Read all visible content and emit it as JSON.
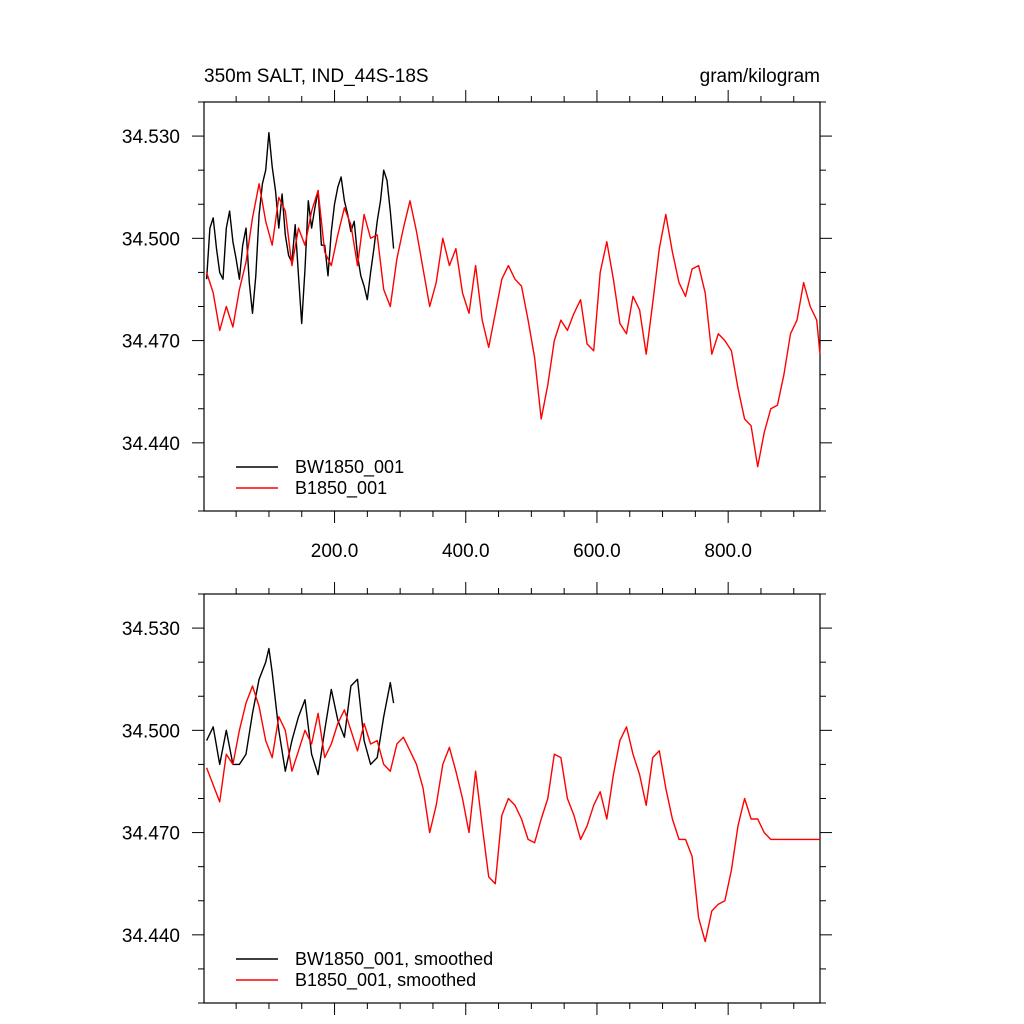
{
  "chart_data": [
    {
      "type": "line",
      "title": "350m SALT, IND_44S-18S",
      "units": "gram/kilogram",
      "xlim": [
        1,
        940
      ],
      "ylim": [
        34.42,
        34.54
      ],
      "xticks": [
        200,
        400,
        600,
        800
      ],
      "xtick_labels": [
        "200.0",
        "400.0",
        "600.0",
        "800.0"
      ],
      "yticks": [
        34.44,
        34.47,
        34.5,
        34.53
      ],
      "ytick_labels": [
        "34.440",
        "34.470",
        "34.500",
        "34.530"
      ],
      "legend_position": "bottom-left",
      "series": [
        {
          "name": "BW1850_001",
          "color": "#000000",
          "x": [
            5,
            10,
            15,
            20,
            25,
            30,
            35,
            40,
            45,
            50,
            55,
            60,
            65,
            70,
            75,
            80,
            85,
            90,
            95,
            100,
            105,
            110,
            115,
            120,
            125,
            130,
            135,
            140,
            145,
            150,
            155,
            160,
            165,
            170,
            175,
            180,
            185,
            190,
            195,
            200,
            205,
            210,
            215,
            220,
            225,
            230,
            235,
            240,
            245,
            250,
            255,
            260,
            265,
            270,
            275,
            280,
            285,
            290
          ],
          "values": [
            34.488,
            34.503,
            34.506,
            34.497,
            34.49,
            34.488,
            34.503,
            34.508,
            34.499,
            34.494,
            34.488,
            34.498,
            34.503,
            34.487,
            34.478,
            34.489,
            34.507,
            34.516,
            34.52,
            34.531,
            34.521,
            34.514,
            34.503,
            34.513,
            34.501,
            34.495,
            34.493,
            34.504,
            34.489,
            34.475,
            34.491,
            34.511,
            34.503,
            34.509,
            34.514,
            34.498,
            34.498,
            34.489,
            34.502,
            34.51,
            34.515,
            34.518,
            34.511,
            34.507,
            34.502,
            34.505,
            34.495,
            34.489,
            34.486,
            34.482,
            34.49,
            34.497,
            34.505,
            34.511,
            34.52,
            34.517,
            34.508,
            34.497
          ]
        },
        {
          "name": "B1850_001",
          "color": "#ff0000",
          "x": [
            5,
            15,
            25,
            35,
            45,
            55,
            65,
            75,
            85,
            95,
            105,
            115,
            125,
            135,
            145,
            155,
            165,
            175,
            185,
            195,
            205,
            215,
            225,
            235,
            245,
            255,
            265,
            275,
            285,
            295,
            305,
            315,
            325,
            335,
            345,
            355,
            365,
            375,
            385,
            395,
            405,
            415,
            425,
            435,
            445,
            455,
            465,
            475,
            485,
            495,
            505,
            515,
            525,
            535,
            545,
            555,
            565,
            575,
            585,
            595,
            605,
            615,
            625,
            635,
            645,
            655,
            665,
            675,
            685,
            695,
            705,
            715,
            725,
            735,
            745,
            755,
            765,
            775,
            785,
            795,
            805,
            815,
            825,
            835,
            845,
            855,
            865,
            875,
            885,
            895,
            905,
            915,
            925,
            935,
            940
          ],
          "values": [
            34.49,
            34.484,
            34.473,
            34.48,
            34.474,
            34.485,
            34.493,
            34.506,
            34.516,
            34.505,
            34.498,
            34.512,
            34.508,
            34.492,
            34.503,
            34.498,
            34.508,
            34.514,
            34.496,
            34.492,
            34.501,
            34.509,
            34.504,
            34.492,
            34.507,
            34.5,
            34.501,
            34.485,
            34.48,
            34.494,
            34.503,
            34.511,
            34.502,
            34.491,
            34.48,
            34.487,
            34.5,
            34.492,
            34.497,
            34.484,
            34.478,
            34.492,
            34.476,
            34.468,
            34.478,
            34.488,
            34.492,
            34.488,
            34.486,
            34.476,
            34.465,
            34.447,
            34.457,
            34.47,
            34.476,
            34.473,
            34.478,
            34.482,
            34.469,
            34.467,
            34.49,
            34.499,
            34.488,
            34.475,
            34.472,
            34.483,
            34.479,
            34.466,
            34.481,
            34.497,
            34.507,
            34.496,
            34.487,
            34.483,
            34.491,
            34.492,
            34.484,
            34.466,
            34.472,
            34.47,
            34.467,
            34.456,
            34.447,
            34.445,
            34.433,
            34.443,
            34.45,
            34.451,
            34.46,
            34.472,
            34.476,
            34.487,
            34.48,
            34.476,
            34.466
          ]
        }
      ]
    },
    {
      "type": "line",
      "xlim": [
        1,
        940
      ],
      "ylim": [
        34.42,
        34.54
      ],
      "xticks": [
        200,
        400,
        600,
        800
      ],
      "xtick_labels": [],
      "yticks": [
        34.44,
        34.47,
        34.5,
        34.53
      ],
      "ytick_labels": [
        "34.440",
        "34.470",
        "34.500",
        "34.530"
      ],
      "legend_position": "bottom-left",
      "series": [
        {
          "name": "BW1850_001, smoothed",
          "color": "#000000",
          "x": [
            5,
            15,
            25,
            35,
            45,
            55,
            65,
            75,
            85,
            95,
            100,
            105,
            115,
            125,
            135,
            145,
            155,
            165,
            175,
            185,
            195,
            205,
            215,
            225,
            235,
            245,
            255,
            265,
            275,
            285,
            290
          ],
          "values": [
            34.497,
            34.501,
            34.49,
            34.5,
            34.49,
            34.49,
            34.493,
            34.505,
            34.515,
            34.52,
            34.524,
            34.517,
            34.5,
            34.488,
            34.497,
            34.504,
            34.509,
            34.493,
            34.487,
            34.5,
            34.512,
            34.503,
            34.498,
            34.513,
            34.515,
            34.497,
            34.49,
            34.492,
            34.504,
            34.514,
            34.508
          ]
        },
        {
          "name": "B1850_001, smoothed",
          "color": "#ff0000",
          "x": [
            5,
            15,
            25,
            35,
            45,
            55,
            65,
            75,
            85,
            95,
            105,
            115,
            125,
            135,
            145,
            155,
            165,
            175,
            185,
            195,
            205,
            215,
            225,
            235,
            245,
            255,
            265,
            275,
            285,
            295,
            305,
            315,
            325,
            335,
            345,
            355,
            365,
            375,
            385,
            395,
            405,
            415,
            425,
            435,
            445,
            455,
            465,
            475,
            485,
            495,
            505,
            515,
            525,
            535,
            545,
            555,
            565,
            575,
            585,
            595,
            605,
            615,
            625,
            635,
            645,
            655,
            665,
            675,
            685,
            695,
            705,
            715,
            725,
            735,
            745,
            755,
            765,
            775,
            785,
            795,
            805,
            815,
            825,
            835,
            845,
            855,
            865,
            875,
            885,
            895,
            905,
            915,
            925,
            935,
            940
          ],
          "values": [
            34.489,
            34.484,
            34.479,
            34.493,
            34.49,
            34.5,
            34.508,
            34.513,
            34.507,
            34.497,
            34.492,
            34.504,
            34.5,
            34.488,
            34.494,
            34.5,
            34.496,
            34.505,
            34.492,
            34.496,
            34.502,
            34.506,
            34.5,
            34.494,
            34.502,
            34.496,
            34.497,
            34.49,
            34.488,
            34.496,
            34.498,
            34.494,
            34.49,
            34.483,
            34.47,
            34.478,
            34.49,
            34.495,
            34.488,
            34.48,
            34.47,
            34.488,
            34.472,
            34.457,
            34.455,
            34.475,
            34.48,
            34.478,
            34.474,
            34.468,
            34.467,
            34.474,
            34.48,
            34.493,
            34.492,
            34.48,
            34.475,
            34.468,
            34.472,
            34.478,
            34.482,
            34.474,
            34.487,
            34.497,
            34.501,
            34.493,
            34.487,
            34.478,
            34.492,
            34.494,
            34.483,
            34.474,
            34.468,
            34.468,
            34.463,
            34.445,
            34.438,
            34.447,
            34.449,
            34.45,
            34.459,
            34.472,
            34.48,
            34.474,
            34.474,
            34.47,
            34.468,
            34.468,
            34.468,
            34.468,
            34.468,
            34.468,
            34.468,
            34.468,
            34.468
          ]
        }
      ]
    }
  ]
}
